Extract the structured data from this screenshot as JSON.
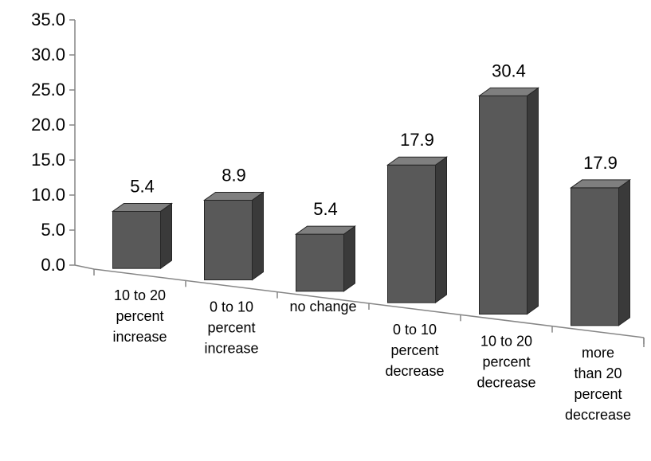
{
  "chart_data": {
    "type": "bar",
    "style": "3d-column",
    "categories": [
      [
        "10 to 20",
        "percent",
        "increase"
      ],
      [
        "0 to 10",
        "percent",
        "increase"
      ],
      [
        "no change"
      ],
      [
        "0 to 10",
        "percent",
        "decrease"
      ],
      [
        "10 to 20",
        "percent",
        "decrease"
      ],
      [
        "more",
        "than 20",
        "percent",
        "deccrease"
      ]
    ],
    "values": [
      5.4,
      8.9,
      5.4,
      17.9,
      30.4,
      17.9
    ],
    "data_labels": [
      "5.4",
      "8.9",
      "5.4",
      "17.9",
      "30.4",
      "17.9"
    ],
    "yticks": [
      "0.0",
      "5.0",
      "10.0",
      "15.0",
      "20.0",
      "25.0",
      "30.0",
      "35.0"
    ],
    "ylim": [
      0,
      35
    ],
    "grid": false,
    "legend": "none",
    "title": "",
    "xlabel": "",
    "ylabel": "",
    "colors": {
      "bar_front": "#595959",
      "bar_side": "#3a3a3a",
      "bar_top": "#7f7f7f",
      "bar_edge": "#262626",
      "axis": "#868686"
    }
  }
}
